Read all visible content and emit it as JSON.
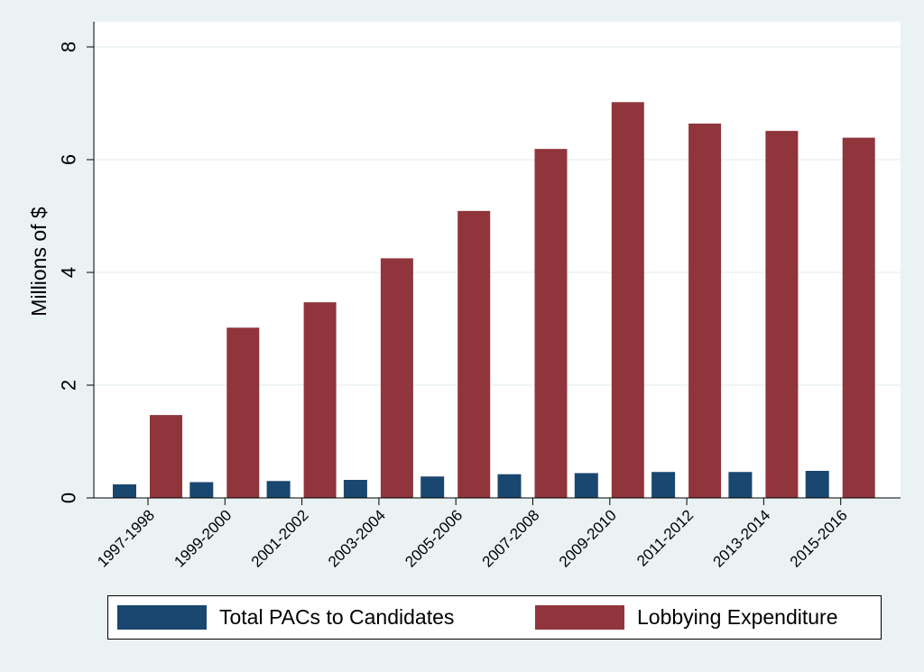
{
  "chart_data": {
    "type": "bar",
    "title": "",
    "xlabel": "",
    "ylabel": "Millions of $",
    "ylim": [
      0,
      8
    ],
    "yticks": [
      "0",
      "2",
      "4",
      "6",
      "8"
    ],
    "grid": true,
    "legend_position": "bottom",
    "categories": [
      "1997-1998",
      "1999-2000",
      "2001-2002",
      "2003-2004",
      "2005-2006",
      "2007-2008",
      "2009-2010",
      "2011-2012",
      "2013-2014",
      "2015-2016"
    ],
    "series": [
      {
        "name": "Total PACs to Candidates",
        "color": "#1a476f",
        "values": [
          0.24,
          0.28,
          0.3,
          0.32,
          0.38,
          0.42,
          0.44,
          0.46,
          0.46,
          0.48
        ]
      },
      {
        "name": "Lobbying Expenditure",
        "color": "#90353b",
        "values": [
          1.47,
          3.02,
          3.47,
          4.25,
          5.09,
          6.19,
          7.02,
          6.64,
          6.51,
          6.39
        ]
      }
    ]
  }
}
